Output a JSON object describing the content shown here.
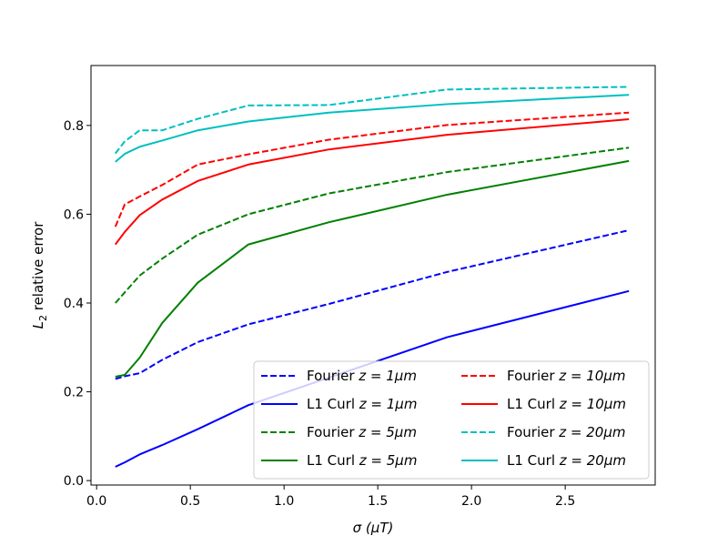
{
  "chart_data": {
    "type": "line",
    "xlabel": "σ (μT)",
    "ylabel_main": "L",
    "ylabel_sub": "2",
    "ylabel_rest": " relative error",
    "xlim": [
      -0.03,
      2.98
    ],
    "ylim": [
      -0.01,
      0.935
    ],
    "xticks": [
      0.0,
      0.5,
      1.0,
      1.5,
      2.0,
      2.5
    ],
    "xtick_labels": [
      "0.0",
      "0.5",
      "1.0",
      "1.5",
      "2.0",
      "2.5"
    ],
    "yticks": [
      0.0,
      0.2,
      0.4,
      0.6,
      0.8
    ],
    "ytick_labels": [
      "0.0",
      "0.2",
      "0.4",
      "0.6",
      "0.8"
    ],
    "legend_position": "lower-right",
    "legend_columns": 2,
    "series": [
      {
        "name": "Fourier z = 1μm",
        "prefix": "Fourier ",
        "z": "z = 1μm",
        "color": "#0000ff",
        "dash": true,
        "x": [
          0.1,
          0.15,
          0.23,
          0.35,
          0.54,
          0.81,
          1.24,
          1.87,
          2.84
        ],
        "y": [
          0.229,
          0.235,
          0.242,
          0.272,
          0.312,
          0.352,
          0.398,
          0.47,
          0.564
        ]
      },
      {
        "name": "L1 Curl z = 1μm",
        "prefix": "L1 Curl ",
        "z": "z = 1μm",
        "color": "#0000ff",
        "dash": false,
        "x": [
          0.1,
          0.15,
          0.23,
          0.35,
          0.54,
          0.81,
          1.24,
          1.87,
          2.84
        ],
        "y": [
          0.031,
          0.041,
          0.059,
          0.08,
          0.116,
          0.17,
          0.232,
          0.323,
          0.427
        ]
      },
      {
        "name": "Fourier z = 5μm",
        "prefix": "Fourier ",
        "z": "z = 5μm",
        "color": "#008000",
        "dash": true,
        "x": [
          0.1,
          0.15,
          0.23,
          0.35,
          0.54,
          0.81,
          1.24,
          1.87,
          2.84
        ],
        "y": [
          0.4,
          0.424,
          0.462,
          0.5,
          0.554,
          0.6,
          0.647,
          0.695,
          0.75
        ]
      },
      {
        "name": "L1 Curl z = 5μm",
        "prefix": "L1 Curl ",
        "z": "z = 5μm",
        "color": "#008000",
        "dash": false,
        "x": [
          0.1,
          0.15,
          0.23,
          0.35,
          0.54,
          0.81,
          1.24,
          1.87,
          2.84
        ],
        "y": [
          0.234,
          0.238,
          0.277,
          0.355,
          0.446,
          0.532,
          0.582,
          0.644,
          0.72
        ]
      },
      {
        "name": "Fourier z = 10μm",
        "prefix": "Fourier ",
        "z": "z = 10μm",
        "color": "#ff0000",
        "dash": true,
        "x": [
          0.1,
          0.15,
          0.23,
          0.35,
          0.54,
          0.81,
          1.24,
          1.87,
          2.84
        ],
        "y": [
          0.572,
          0.622,
          0.64,
          0.666,
          0.712,
          0.735,
          0.768,
          0.801,
          0.829
        ]
      },
      {
        "name": "L1 Curl z = 10μm",
        "prefix": "L1 Curl ",
        "z": "z = 10μm",
        "color": "#ff0000",
        "dash": false,
        "x": [
          0.1,
          0.15,
          0.23,
          0.35,
          0.54,
          0.81,
          1.24,
          1.87,
          2.84
        ],
        "y": [
          0.532,
          0.56,
          0.598,
          0.633,
          0.675,
          0.712,
          0.746,
          0.779,
          0.814
        ]
      },
      {
        "name": "Fourier z = 20μm",
        "prefix": "Fourier ",
        "z": "z = 20μm",
        "color": "#00bfbf",
        "dash": true,
        "x": [
          0.1,
          0.15,
          0.23,
          0.35,
          0.54,
          0.81,
          1.24,
          1.87,
          2.84
        ],
        "y": [
          0.737,
          0.764,
          0.789,
          0.789,
          0.815,
          0.845,
          0.846,
          0.881,
          0.887
        ]
      },
      {
        "name": "L1 Curl z = 20μm",
        "prefix": "L1 Curl ",
        "z": "z = 20μm",
        "color": "#00bfbf",
        "dash": false,
        "x": [
          0.1,
          0.15,
          0.23,
          0.35,
          0.54,
          0.81,
          1.24,
          1.87,
          2.84
        ],
        "y": [
          0.718,
          0.736,
          0.752,
          0.766,
          0.789,
          0.809,
          0.829,
          0.848,
          0.869
        ]
      }
    ]
  }
}
